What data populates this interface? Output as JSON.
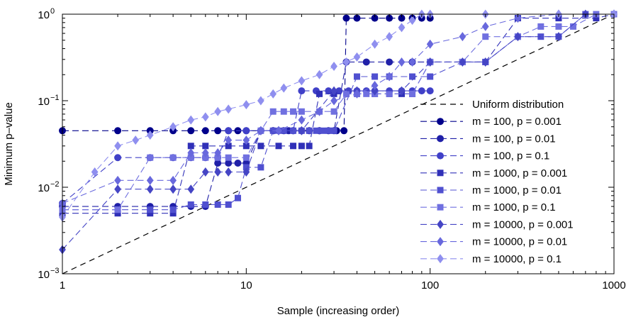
{
  "chart_data": {
    "type": "line",
    "xlabel": "Sample (increasing order)",
    "ylabel": "Minimum p–value",
    "xscale": "log",
    "yscale": "log",
    "xlim": [
      1,
      1000
    ],
    "ylim": [
      0.001,
      1
    ],
    "grid": false,
    "legend_position": "right",
    "x_ticks": [
      {
        "value": 1,
        "label": "1"
      },
      {
        "value": 10,
        "label": "10"
      },
      {
        "value": 100,
        "label": "100"
      },
      {
        "value": 1000,
        "label": "1000"
      }
    ],
    "y_ticks": [
      {
        "value": 0.001,
        "base": "10",
        "exp": "−3"
      },
      {
        "value": 0.01,
        "base": "10",
        "exp": "−2"
      },
      {
        "value": 0.1,
        "base": "10",
        "exp": "−1"
      },
      {
        "value": 1,
        "base": "10",
        "exp": "0"
      }
    ],
    "reference_line": {
      "name": "Uniform distribution",
      "from": [
        1,
        0.001
      ],
      "to": [
        1000,
        1
      ],
      "style": "dashed",
      "color": "#000000"
    },
    "series": [
      {
        "name": "m = 100, p = 0.001",
        "m": 100,
        "color": "#00008b",
        "marker": "circle",
        "points": [
          [
            1,
            0.045
          ],
          [
            2,
            0.045
          ],
          [
            3,
            0.045
          ],
          [
            4,
            0.045
          ],
          [
            5,
            0.045
          ],
          [
            6,
            0.045
          ],
          [
            7,
            0.045
          ],
          [
            8,
            0.045
          ],
          [
            9,
            0.045
          ],
          [
            10,
            0.045
          ],
          [
            12,
            0.045
          ],
          [
            14,
            0.045
          ],
          [
            16,
            0.045
          ],
          [
            18,
            0.045
          ],
          [
            20,
            0.045
          ],
          [
            22,
            0.045
          ],
          [
            25,
            0.045
          ],
          [
            28,
            0.045
          ],
          [
            31,
            0.045
          ],
          [
            34,
            0.045
          ],
          [
            35,
            0.9
          ],
          [
            40,
            0.9
          ],
          [
            50,
            0.9
          ],
          [
            60,
            0.9
          ],
          [
            70,
            0.9
          ],
          [
            80,
            0.9
          ],
          [
            90,
            0.9
          ],
          [
            100,
            0.9
          ]
        ]
      },
      {
        "name": "m = 100, p = 0.01",
        "m": 100,
        "color": "#2020a8",
        "marker": "circle",
        "points": [
          [
            1,
            0.006
          ],
          [
            2,
            0.006
          ],
          [
            3,
            0.006
          ],
          [
            4,
            0.006
          ],
          [
            5,
            0.006
          ],
          [
            6,
            0.006
          ],
          [
            7,
            0.019
          ],
          [
            8,
            0.019
          ],
          [
            9,
            0.019
          ],
          [
            10,
            0.019
          ],
          [
            12,
            0.045
          ],
          [
            14,
            0.045
          ],
          [
            17,
            0.045
          ],
          [
            20,
            0.045
          ],
          [
            25,
            0.045
          ],
          [
            30,
            0.045
          ],
          [
            35,
            0.28
          ],
          [
            45,
            0.28
          ],
          [
            60,
            0.28
          ],
          [
            80,
            0.28
          ],
          [
            100,
            0.28
          ]
        ]
      },
      {
        "name": "m = 100, p = 0.1",
        "m": 100,
        "color": "#4040c8",
        "marker": "circle",
        "points": [
          [
            1,
            0.0065
          ],
          [
            2,
            0.022
          ],
          [
            3,
            0.022
          ],
          [
            4,
            0.022
          ],
          [
            5,
            0.022
          ],
          [
            6,
            0.022
          ],
          [
            7,
            0.022
          ],
          [
            8,
            0.045
          ],
          [
            10,
            0.045
          ],
          [
            12,
            0.045
          ],
          [
            15,
            0.045
          ],
          [
            18,
            0.045
          ],
          [
            20,
            0.13
          ],
          [
            24,
            0.13
          ],
          [
            28,
            0.13
          ],
          [
            32,
            0.13
          ],
          [
            36,
            0.13
          ],
          [
            40,
            0.13
          ],
          [
            45,
            0.13
          ],
          [
            50,
            0.13
          ],
          [
            60,
            0.13
          ],
          [
            70,
            0.13
          ],
          [
            80,
            0.13
          ],
          [
            90,
            0.13
          ],
          [
            100,
            0.13
          ]
        ]
      },
      {
        "name": "m = 1000, p = 0.001",
        "m": 1000,
        "color": "#3030b8",
        "marker": "square",
        "points": [
          [
            1,
            0.005
          ],
          [
            2,
            0.005
          ],
          [
            3,
            0.005
          ],
          [
            4,
            0.005
          ],
          [
            5,
            0.03
          ],
          [
            6,
            0.03
          ],
          [
            8,
            0.03
          ],
          [
            10,
            0.03
          ],
          [
            12,
            0.03
          ],
          [
            15,
            0.03
          ],
          [
            18,
            0.03
          ],
          [
            20,
            0.03
          ],
          [
            22,
            0.03
          ],
          [
            25,
            0.12
          ],
          [
            30,
            0.12
          ],
          [
            40,
            0.12
          ],
          [
            50,
            0.12
          ],
          [
            60,
            0.12
          ],
          [
            70,
            0.12
          ],
          [
            80,
            0.12
          ],
          [
            100,
            0.28
          ],
          [
            150,
            0.28
          ],
          [
            200,
            0.28
          ],
          [
            300,
            0.9
          ],
          [
            500,
            0.9
          ],
          [
            800,
            0.9
          ],
          [
            1000,
            1
          ]
        ]
      },
      {
        "name": "m = 1000, p = 0.01",
        "m": 1000,
        "color": "#5050d0",
        "marker": "square",
        "points": [
          [
            1,
            0.0055
          ],
          [
            2,
            0.0055
          ],
          [
            3,
            0.0055
          ],
          [
            4,
            0.0055
          ],
          [
            5,
            0.0063
          ],
          [
            6,
            0.0063
          ],
          [
            7,
            0.0063
          ],
          [
            8,
            0.0063
          ],
          [
            9,
            0.0075
          ],
          [
            10,
            0.017
          ],
          [
            12,
            0.017
          ],
          [
            14,
            0.045
          ],
          [
            16,
            0.045
          ],
          [
            18,
            0.045
          ],
          [
            20,
            0.045
          ],
          [
            22,
            0.045
          ],
          [
            24,
            0.045
          ],
          [
            26,
            0.045
          ],
          [
            28,
            0.045
          ],
          [
            30,
            0.045
          ],
          [
            40,
            0.19
          ],
          [
            50,
            0.19
          ],
          [
            60,
            0.19
          ],
          [
            80,
            0.19
          ],
          [
            100,
            0.19
          ],
          [
            150,
            0.28
          ],
          [
            200,
            0.28
          ],
          [
            300,
            0.55
          ],
          [
            400,
            0.55
          ],
          [
            500,
            0.55
          ],
          [
            700,
            1
          ],
          [
            1000,
            1
          ]
        ]
      },
      {
        "name": "m = 1000, p = 0.1",
        "m": 1000,
        "color": "#7070e0",
        "marker": "square",
        "points": [
          [
            1,
            0.0055
          ],
          [
            2,
            0.0055
          ],
          [
            3,
            0.022
          ],
          [
            4,
            0.022
          ],
          [
            5,
            0.022
          ],
          [
            6,
            0.022
          ],
          [
            7,
            0.022
          ],
          [
            8,
            0.022
          ],
          [
            10,
            0.022
          ],
          [
            12,
            0.045
          ],
          [
            14,
            0.075
          ],
          [
            16,
            0.075
          ],
          [
            18,
            0.075
          ],
          [
            20,
            0.075
          ],
          [
            25,
            0.075
          ],
          [
            30,
            0.075
          ],
          [
            35,
            0.12
          ],
          [
            40,
            0.12
          ],
          [
            45,
            0.12
          ],
          [
            50,
            0.12
          ],
          [
            60,
            0.12
          ],
          [
            80,
            0.12
          ],
          [
            100,
            0.28
          ],
          [
            150,
            0.28
          ],
          [
            200,
            0.55
          ],
          [
            300,
            0.55
          ],
          [
            400,
            0.72
          ],
          [
            500,
            0.72
          ],
          [
            600,
            0.72
          ],
          [
            800,
            1
          ],
          [
            1000,
            1
          ]
        ]
      },
      {
        "name": "m = 10000, p = 0.001",
        "m": 10000,
        "color": "#4545c5",
        "marker": "diamond",
        "points": [
          [
            1,
            0.0019
          ],
          [
            2,
            0.0095
          ],
          [
            3,
            0.0095
          ],
          [
            4,
            0.0095
          ],
          [
            5,
            0.0095
          ],
          [
            6,
            0.015
          ],
          [
            7,
            0.015
          ],
          [
            8,
            0.015
          ],
          [
            10,
            0.015
          ],
          [
            12,
            0.045
          ],
          [
            15,
            0.045
          ],
          [
            20,
            0.045
          ],
          [
            30,
            0.13
          ],
          [
            40,
            0.13
          ],
          [
            50,
            0.13
          ],
          [
            70,
            0.13
          ],
          [
            100,
            0.28
          ],
          [
            150,
            0.28
          ],
          [
            200,
            0.28
          ],
          [
            300,
            0.55
          ],
          [
            500,
            0.55
          ],
          [
            700,
            1
          ],
          [
            1000,
            1
          ]
        ]
      },
      {
        "name": "m = 10000, p = 0.01",
        "m": 10000,
        "color": "#6868dd",
        "marker": "diamond",
        "points": [
          [
            1,
            0.0065
          ],
          [
            2,
            0.012
          ],
          [
            3,
            0.012
          ],
          [
            4,
            0.012
          ],
          [
            5,
            0.025
          ],
          [
            6,
            0.025
          ],
          [
            7,
            0.025
          ],
          [
            8,
            0.035
          ],
          [
            10,
            0.035
          ],
          [
            12,
            0.045
          ],
          [
            15,
            0.045
          ],
          [
            20,
            0.06
          ],
          [
            25,
            0.075
          ],
          [
            30,
            0.1
          ],
          [
            40,
            0.12
          ],
          [
            50,
            0.15
          ],
          [
            60,
            0.19
          ],
          [
            70,
            0.28
          ],
          [
            80,
            0.28
          ],
          [
            100,
            0.45
          ],
          [
            150,
            0.55
          ],
          [
            200,
            0.72
          ],
          [
            300,
            0.9
          ],
          [
            500,
            1
          ],
          [
            1000,
            1
          ]
        ]
      },
      {
        "name": "m = 10000, p = 0.1",
        "m": 10000,
        "color": "#8f8fef",
        "marker": "diamond",
        "points": [
          [
            1,
            0.0045
          ],
          [
            1.5,
            0.015
          ],
          [
            2,
            0.03
          ],
          [
            2.5,
            0.035
          ],
          [
            3,
            0.04
          ],
          [
            4,
            0.05
          ],
          [
            5,
            0.06
          ],
          [
            6,
            0.065
          ],
          [
            7,
            0.075
          ],
          [
            8,
            0.08
          ],
          [
            10,
            0.09
          ],
          [
            12,
            0.1
          ],
          [
            14,
            0.12
          ],
          [
            16,
            0.14
          ],
          [
            20,
            0.17
          ],
          [
            25,
            0.2
          ],
          [
            30,
            0.25
          ],
          [
            35,
            0.28
          ],
          [
            40,
            0.32
          ],
          [
            50,
            0.45
          ],
          [
            60,
            0.55
          ],
          [
            70,
            0.7
          ],
          [
            80,
            0.85
          ],
          [
            90,
            1
          ],
          [
            100,
            1
          ],
          [
            200,
            1
          ],
          [
            500,
            1
          ],
          [
            1000,
            1
          ]
        ]
      }
    ]
  }
}
